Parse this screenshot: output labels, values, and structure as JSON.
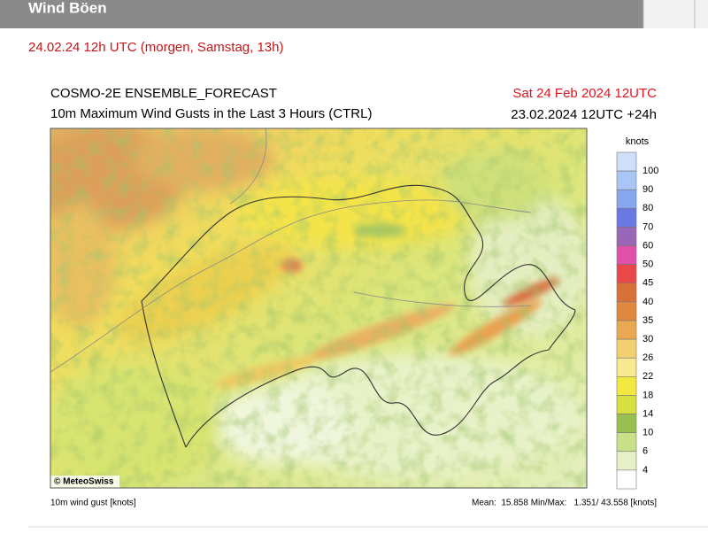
{
  "header": {
    "title": "Wind Böen"
  },
  "subtitle": "24.02.24 12h UTC (morgen, Samstag, 13h)",
  "map": {
    "title": "COSMO-2E ENSEMBLE_FORECAST",
    "subtitle": "10m Maximum Wind Gusts in the Last 3 Hours (CTRL)",
    "valid_time": "Sat 24 Feb 2024 12UTC",
    "run_time": "23.02.2024 12UTC +24h",
    "copyright": "© MeteoSwiss",
    "colorbar": {
      "unit": "knots",
      "levels": [
        100,
        90,
        80,
        70,
        60,
        50,
        45,
        40,
        35,
        30,
        26,
        22,
        18,
        14,
        10,
        6,
        4
      ],
      "colors": [
        "#cfe0fa",
        "#a9c6f5",
        "#86a6ef",
        "#6a78e3",
        "#9a66b8",
        "#e050a8",
        "#e84848",
        "#d87038",
        "#e08840",
        "#eaa850",
        "#f2d070",
        "#f8e890",
        "#f2e840",
        "#d8e040",
        "#98c050",
        "#c8e088",
        "#e8f0c8",
        "#ffffff"
      ]
    },
    "footer_left": "10m wind gust [knots]",
    "footer_right": "Mean:  15.858 Min/Max:   1.351/ 43.558 [knots]"
  }
}
